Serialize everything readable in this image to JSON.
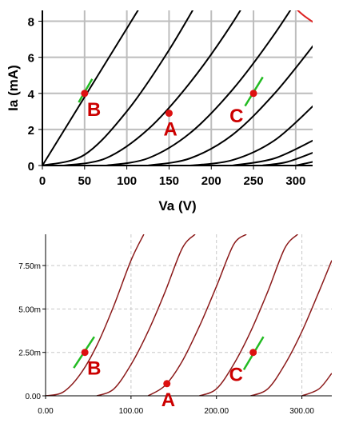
{
  "chart_data": [
    {
      "type": "line",
      "xlabel": "Va (V)",
      "ylabel": "Ia (mA)",
      "xlim": [
        0,
        320
      ],
      "ylim": [
        0,
        8.6
      ],
      "x_ticks": [
        0,
        50,
        100,
        150,
        200,
        250,
        300
      ],
      "y_ticks": [
        0,
        2,
        4,
        6,
        8
      ],
      "x_tick_labels": [
        "0",
        "50",
        "100",
        "150",
        "200",
        "250",
        "300"
      ],
      "y_tick_labels": [
        "0",
        "2",
        "4",
        "6",
        "8"
      ],
      "grid": true,
      "curve_color": "#000000",
      "curves": [
        {
          "x": [
            0,
            50,
            100,
            150
          ],
          "y": [
            0,
            3.8,
            7.6,
            11.4
          ]
        },
        {
          "x": [
            0,
            50,
            100,
            150,
            200
          ],
          "y": [
            0,
            0.6,
            3.0,
            6.4,
            10.4
          ]
        },
        {
          "x": [
            25,
            75,
            125,
            175,
            225,
            275
          ],
          "y": [
            0,
            0.4,
            2.0,
            4.6,
            7.9,
            11.8
          ]
        },
        {
          "x": [
            75,
            125,
            175,
            225,
            275,
            325
          ],
          "y": [
            0,
            0.4,
            1.8,
            4.2,
            7.3,
            10.9
          ]
        },
        {
          "x": [
            125,
            175,
            225,
            275,
            325
          ],
          "y": [
            0,
            0.4,
            1.7,
            4.0,
            6.9
          ]
        },
        {
          "x": [
            175,
            225,
            275,
            325
          ],
          "y": [
            0,
            0.3,
            1.4,
            3.5
          ]
        },
        {
          "x": [
            225,
            275,
            325
          ],
          "y": [
            0,
            0.4,
            1.5
          ]
        },
        {
          "x": [
            260,
            290,
            325
          ],
          "y": [
            0,
            0.2,
            0.8
          ]
        },
        {
          "x": [
            300,
            325
          ],
          "y": [
            0,
            0.25
          ]
        }
      ],
      "limit_curve": {
        "color": "#dd2222",
        "x": [
          288,
          300,
          310,
          322
        ],
        "y": [
          9.2,
          8.7,
          8.3,
          7.9
        ]
      },
      "points": [
        {
          "label": "A",
          "x": 150,
          "y": 2.9
        },
        {
          "label": "B",
          "x": 50,
          "y": 4.0
        },
        {
          "label": "C",
          "x": 250,
          "y": 4.0
        }
      ],
      "point_color": "#dd1111",
      "tangent_color": "#22bb22",
      "tangents": [
        {
          "x": [
            43,
            59
          ],
          "y": [
            3.5,
            4.8
          ]
        },
        {
          "x": [
            240,
            261
          ],
          "y": [
            3.3,
            4.9
          ]
        }
      ]
    },
    {
      "type": "line",
      "xlim": [
        0,
        335
      ],
      "ylim": [
        0,
        0.0093
      ],
      "x_ticks": [
        0,
        100,
        200,
        300
      ],
      "y_ticks": [
        0,
        0.0025,
        0.005,
        0.0075
      ],
      "x_tick_labels": [
        "0.00",
        "100.00",
        "200.00",
        "300.00"
      ],
      "y_tick_labels": [
        "0.00",
        "2.50m",
        "5.00m",
        "7.50m"
      ],
      "grid": true,
      "grid_style": "dashed",
      "curve_color": "#8b1a1a",
      "curves": [
        {
          "x": [
            0,
            20,
            40,
            60,
            80,
            100,
            115
          ],
          "y": [
            0,
            0.0002,
            0.0012,
            0.0029,
            0.0052,
            0.0078,
            0.0093
          ]
        },
        {
          "x": [
            60,
            80,
            100,
            120,
            140,
            160,
            175
          ],
          "y": [
            0,
            0.0004,
            0.0018,
            0.0037,
            0.006,
            0.0085,
            0.0093
          ]
        },
        {
          "x": [
            120,
            140,
            160,
            180,
            200,
            220,
            235
          ],
          "y": [
            0,
            0.0006,
            0.002,
            0.004,
            0.0063,
            0.0087,
            0.0093
          ]
        },
        {
          "x": [
            180,
            200,
            220,
            240,
            260,
            280,
            295
          ],
          "y": [
            0,
            0.0004,
            0.0018,
            0.0037,
            0.006,
            0.0085,
            0.0093
          ]
        },
        {
          "x": [
            240,
            260,
            280,
            300,
            320,
            335
          ],
          "y": [
            0,
            0.0004,
            0.0018,
            0.0037,
            0.006,
            0.0078
          ]
        },
        {
          "x": [
            300,
            320,
            335
          ],
          "y": [
            0,
            0.0004,
            0.0013
          ]
        }
      ],
      "points": [
        {
          "label": "A",
          "x": 142,
          "y": 0.0007
        },
        {
          "label": "B",
          "x": 46,
          "y": 0.0025
        },
        {
          "label": "C",
          "x": 243,
          "y": 0.0025
        }
      ],
      "point_color": "#dd1111",
      "tangent_color": "#22bb22",
      "tangents": [
        {
          "x": [
            33,
            57
          ],
          "y": [
            0.0016,
            0.0034
          ]
        },
        {
          "x": [
            232,
            255
          ],
          "y": [
            0.0015,
            0.0034
          ]
        }
      ]
    }
  ]
}
